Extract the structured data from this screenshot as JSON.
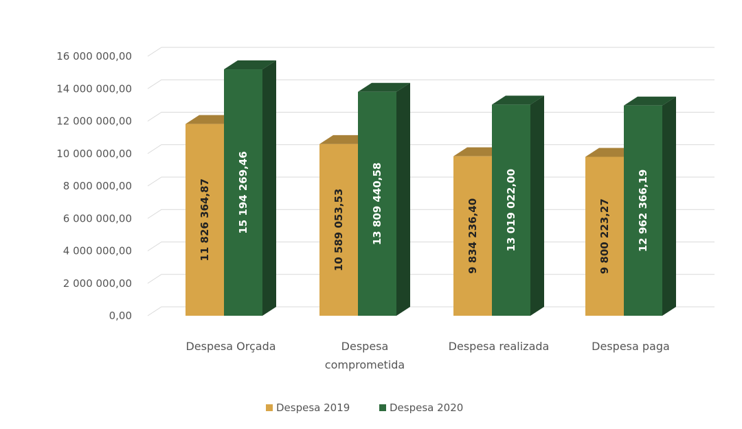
{
  "chart_data": {
    "type": "bar",
    "style": "3d-clustered-column",
    "categories": [
      [
        "Despesa Orçada"
      ],
      [
        "Despesa",
        "comprometida"
      ],
      [
        "Despesa realizada"
      ],
      [
        "Despesa paga"
      ]
    ],
    "series": [
      {
        "name": "Despesa 2019",
        "color": "#D8A548",
        "label_color": "#222222",
        "values": [
          11826364.87,
          10589053.53,
          9834236.4,
          9800223.27
        ],
        "labels": [
          "11 826 364,87",
          "10 589 053,53",
          "9 834 236,40",
          "9 800 223,27"
        ]
      },
      {
        "name": "Despesa 2020",
        "color": "#2E6B3D",
        "label_color": "#FFFFFF",
        "values": [
          15194269.46,
          13809440.58,
          13019022.0,
          12962366.19
        ],
        "labels": [
          "15 194 269,46",
          "13 809 440,58",
          "13 019 022,00",
          "12 962 366,19"
        ]
      }
    ],
    "y_ticks": [
      {
        "value": 0,
        "label": "0,00"
      },
      {
        "value": 2000000,
        "label": "2 000 000,00"
      },
      {
        "value": 4000000,
        "label": "4 000 000,00"
      },
      {
        "value": 6000000,
        "label": "6 000 000,00"
      },
      {
        "value": 8000000,
        "label": "8 000 000,00"
      },
      {
        "value": 10000000,
        "label": "10 000 000,00"
      },
      {
        "value": 12000000,
        "label": "12 000 000,00"
      },
      {
        "value": 14000000,
        "label": "14 000 000,00"
      },
      {
        "value": 16000000,
        "label": "16 000 000,00"
      }
    ],
    "ylim": [
      0,
      16000000
    ],
    "grid": true,
    "legend_position": "bottom"
  }
}
